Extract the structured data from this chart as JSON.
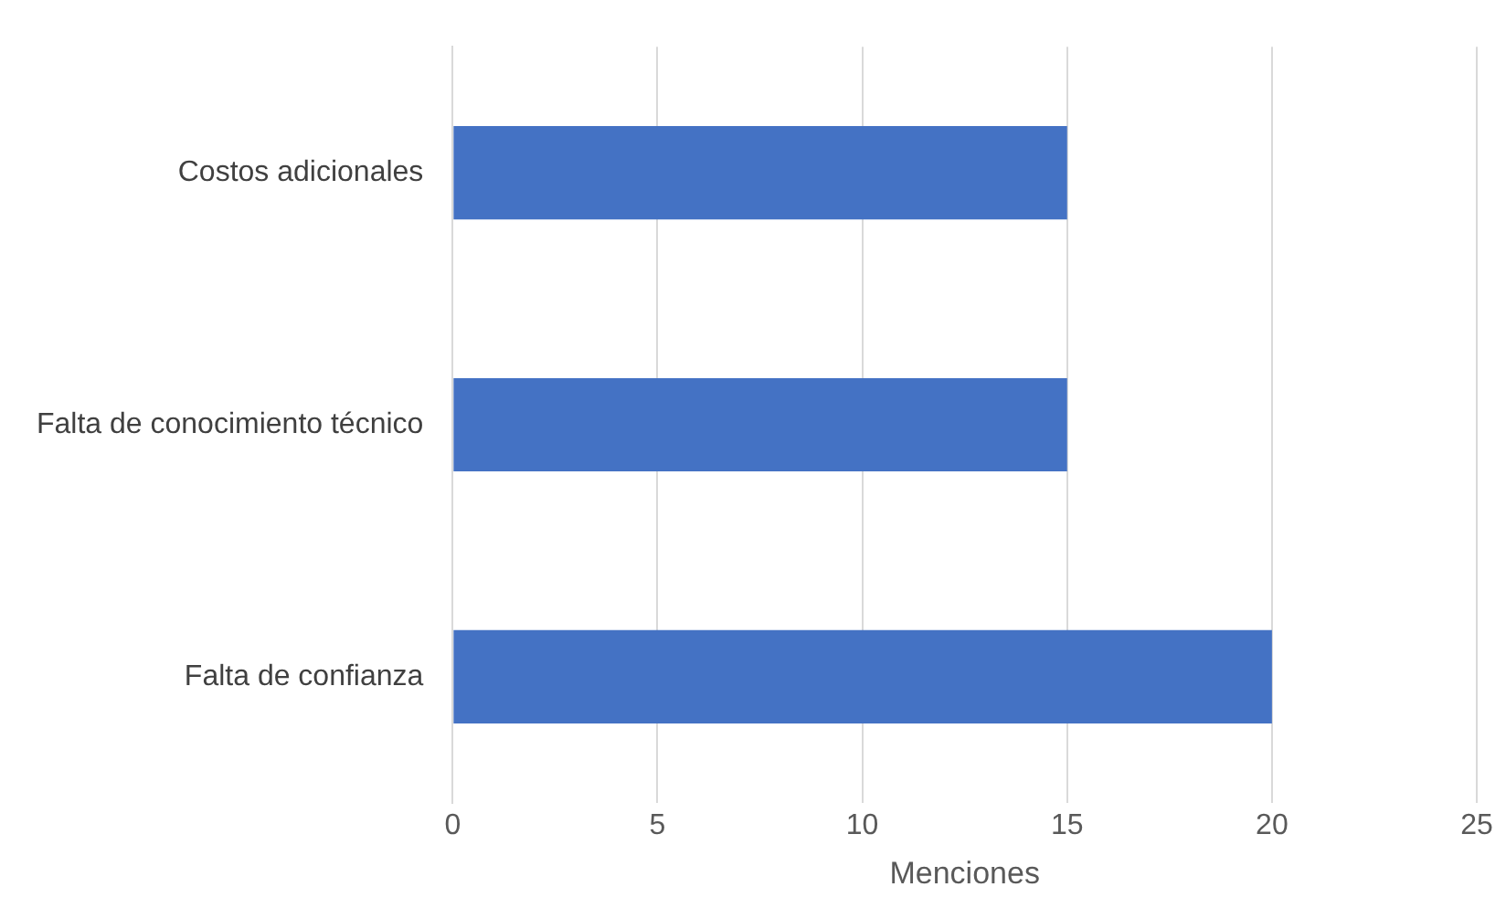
{
  "chart_data": {
    "type": "bar",
    "orientation": "horizontal",
    "categories": [
      "Costos adicionales",
      "Falta de conocimiento técnico",
      "Falta de confianza"
    ],
    "values": [
      15,
      15,
      20
    ],
    "color": "#4472c4",
    "xlabel": "Menciones",
    "xlim": [
      0,
      25
    ],
    "xticks": [
      0,
      5,
      10,
      15,
      20,
      25
    ],
    "grid": "x",
    "legend": false
  }
}
